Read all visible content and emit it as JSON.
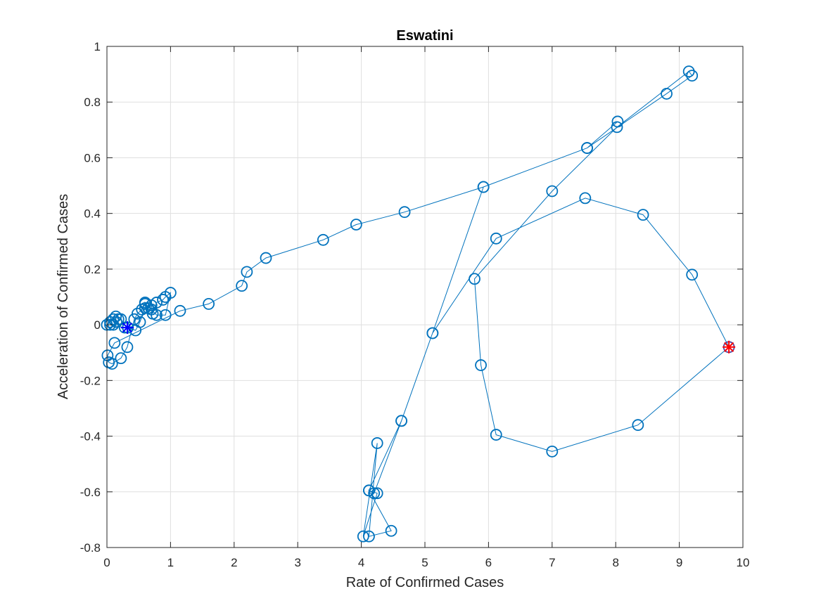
{
  "chart_data": {
    "type": "line",
    "title": "Eswatini",
    "xlabel": "Rate of Confirmed Cases",
    "ylabel": "Acceleration of Confirmed Cases",
    "xlim": [
      0,
      10
    ],
    "ylim": [
      -0.8,
      1
    ],
    "xticks": [
      "0",
      "1",
      "2",
      "3",
      "4",
      "5",
      "6",
      "7",
      "8",
      "9",
      "10"
    ],
    "yticks": [
      "-0.8",
      "-0.6",
      "-0.4",
      "-0.2",
      "0",
      "0.2",
      "0.4",
      "0.6",
      "0.8",
      "1"
    ],
    "grid": true,
    "colors": {
      "series": "#0072BD",
      "start": "#0000FF",
      "end": "#FF0000",
      "end_edge": "#6A3D9A"
    },
    "series": [
      {
        "marker": "circle",
        "x": [
          0.0,
          0.05,
          0.1,
          0.14,
          0.18,
          0.22,
          0.15,
          0.1,
          0.05,
          0.28,
          0.33,
          0.45,
          0.52,
          0.6,
          0.6,
          0.65,
          0.7,
          0.72,
          0.78,
          0.88,
          0.92,
          1.0,
          0.92,
          0.78,
          0.7,
          0.6,
          0.55,
          0.48,
          0.43,
          0.32,
          0.22,
          0.08,
          0.03,
          0.01,
          0.12,
          1.15,
          1.6,
          2.12,
          2.2,
          2.5,
          3.4,
          3.92,
          4.68,
          5.92,
          7.55,
          8.8,
          9.2,
          9.15,
          8.02,
          7.0,
          5.78,
          5.88,
          6.12,
          7.0,
          8.35,
          9.78,
          9.2,
          8.43,
          7.52,
          6.12,
          5.12,
          4.63,
          4.2,
          4.12,
          4.47,
          4.12,
          4.25,
          4.03,
          4.25,
          4.12,
          4.63,
          5.12,
          5.92,
          7.55,
          8.03
        ],
        "y": [
          0.0,
          0.01,
          0.02,
          0.03,
          0.02,
          0.02,
          0.01,
          0.0,
          0.0,
          -0.01,
          -0.01,
          -0.02,
          0.01,
          0.06,
          0.08,
          0.06,
          0.07,
          0.04,
          0.08,
          0.09,
          0.1,
          0.115,
          0.035,
          0.035,
          0.055,
          0.075,
          0.055,
          0.04,
          0.02,
          -0.08,
          -0.12,
          -0.14,
          -0.135,
          -0.11,
          -0.065,
          0.05,
          0.075,
          0.14,
          0.19,
          0.24,
          0.305,
          0.36,
          0.405,
          0.495,
          0.635,
          0.83,
          0.895,
          0.91,
          0.71,
          0.48,
          0.165,
          -0.145,
          -0.395,
          -0.455,
          -0.36,
          -0.08,
          0.18,
          0.395,
          0.455,
          0.31,
          -0.03,
          -0.345,
          -0.605,
          -0.595,
          -0.74,
          -0.76,
          -0.425,
          -0.76,
          -0.605,
          -0.595,
          -0.345,
          -0.03,
          0.495,
          0.635,
          0.73
        ]
      }
    ],
    "start_point": {
      "x": 0.32,
      "y": -0.01,
      "marker": "asterisk"
    },
    "end_point": {
      "x": 9.78,
      "y": -0.08,
      "marker": "asterisk"
    }
  }
}
